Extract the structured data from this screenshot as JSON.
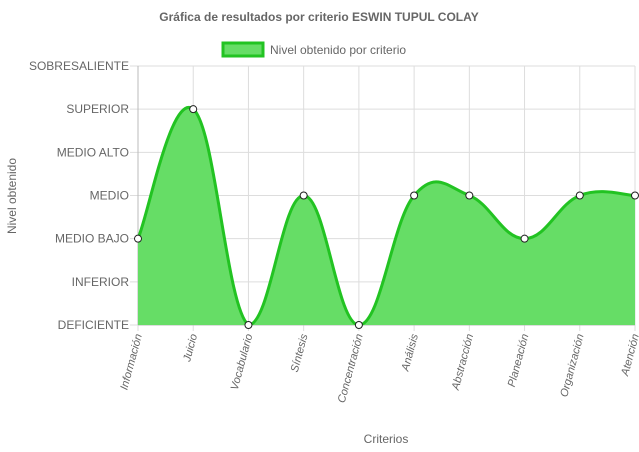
{
  "chart_data": {
    "type": "area",
    "title": "Gráfica de resultados por criterio ESWIN TUPUL COLAY",
    "xlabel": "Criterios",
    "ylabel": "Nivel obtenido",
    "legend": "top",
    "grid": true,
    "y_levels": [
      "DEFICIENTE",
      "INFERIOR",
      "MEDIO BAJO",
      "MEDIO",
      "MEDIO ALTO",
      "SUPERIOR",
      "SOBRESALIENTE"
    ],
    "categories": [
      "Información",
      "Juicio",
      "Vocabulario",
      "Síntesis",
      "Concentración",
      "Análisis",
      "Abstracción",
      "Planeación",
      "Organización",
      "Atención"
    ],
    "series": [
      {
        "name": "Nivel obtenido por criterio",
        "values": [
          2,
          5,
          0,
          3,
          0,
          3,
          3,
          2,
          3,
          3
        ],
        "color": "#22c322",
        "fill": "#66dd66"
      }
    ]
  }
}
